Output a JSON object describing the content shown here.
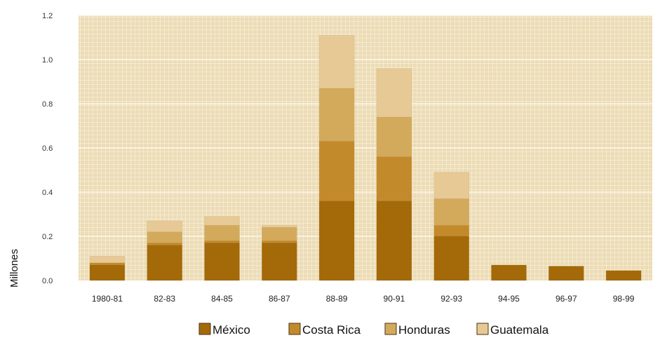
{
  "chart_data": {
    "type": "bar",
    "stacked": true,
    "title": "",
    "xlabel": "",
    "ylabel": "Millones",
    "ylim": [
      0,
      1.2
    ],
    "yticks": [
      0.0,
      0.2,
      0.4,
      0.6,
      0.8,
      1.0,
      1.2
    ],
    "ytick_labels": [
      "0.0",
      "0.2",
      "0.4",
      "0.6",
      "0.8",
      "1.0",
      "1.2"
    ],
    "grid": true,
    "legend_position": "bottom",
    "categories": [
      "1980-81",
      "82-83",
      "84-85",
      "86-87",
      "88-89",
      "90-91",
      "92-93",
      "94-95",
      "96-97",
      "98-99"
    ],
    "series": [
      {
        "name": "México",
        "color": "#a46a09",
        "values": [
          0.07,
          0.16,
          0.17,
          0.17,
          0.36,
          0.36,
          0.2,
          0.07,
          0.065,
          0.045
        ]
      },
      {
        "name": "Costa Rica",
        "color": "#c38a2c",
        "values": [
          0.01,
          0.01,
          0.01,
          0.01,
          0.27,
          0.2,
          0.05,
          0.0,
          0.0,
          0.0
        ]
      },
      {
        "name": "Honduras",
        "color": "#d3aa5c",
        "values": [
          0.0,
          0.05,
          0.07,
          0.06,
          0.24,
          0.18,
          0.12,
          0.0,
          0.0,
          0.0
        ]
      },
      {
        "name": "Guatemala",
        "color": "#e6c994",
        "values": [
          0.03,
          0.05,
          0.04,
          0.01,
          0.24,
          0.22,
          0.12,
          0.0,
          0.0,
          0.0
        ]
      }
    ]
  }
}
